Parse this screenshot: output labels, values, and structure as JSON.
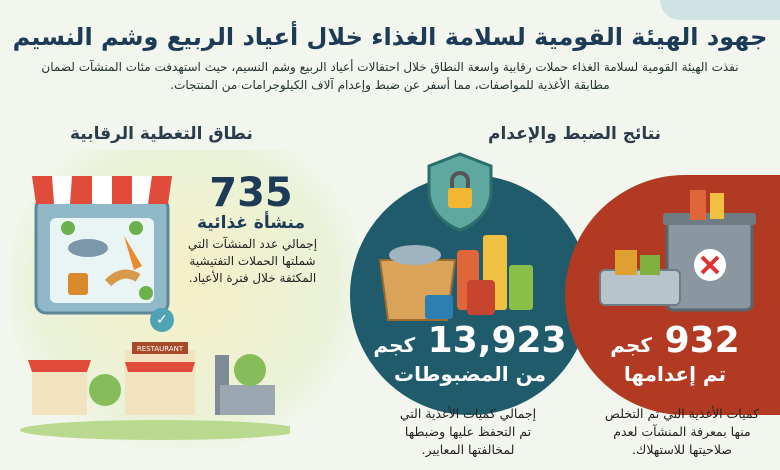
{
  "header": {
    "title": "جهود الهيئة القومية لسلامة الغذاء خلال أعياد الربيع وشم النسيم",
    "subtitle_line1": "نفذت الهيئة القومية لسلامة الغذاء حملات رقابية واسعة النطاق خلال احتفالات أعياد الربيع وشم النسيم، حيث استهدفت مئات المنشآت لضمان",
    "subtitle_line2": "مطابقة الأغذية للمواصفات، مما أسفر عن ضبط وإعدام آلاف الكيلوجرامات من المنتجات."
  },
  "coverage": {
    "heading": "نطاق التغطية الرقابية",
    "value": "735",
    "unit": "منشأة غذائية",
    "description": [
      "إجمالي عدد المنشآت التي",
      "شملتها الحملات التفتيشية",
      "المكثفة خلال فترة الأعياد."
    ],
    "restaurant_sign": "RESTAURANT"
  },
  "results": {
    "heading": "نتائج الضبط والإعدام",
    "seized": {
      "value": "13,923",
      "unit": "كجم",
      "label": "من المضبوطات",
      "description": [
        "إجمالي كميات الأغذية التي",
        "تم التحفظ عليها وضبطها",
        "لمخالفتها المعايير."
      ],
      "color": "#1f5b6a"
    },
    "destroyed": {
      "value": "932",
      "unit": "كجم",
      "label": "تم إعدامها",
      "description": [
        "كميات الأغذية التي تم التخلص",
        "منها بمعرفة المنشآت لعدم",
        "صلاحيتها للاستهلاك."
      ],
      "color": "#b33a22"
    }
  }
}
